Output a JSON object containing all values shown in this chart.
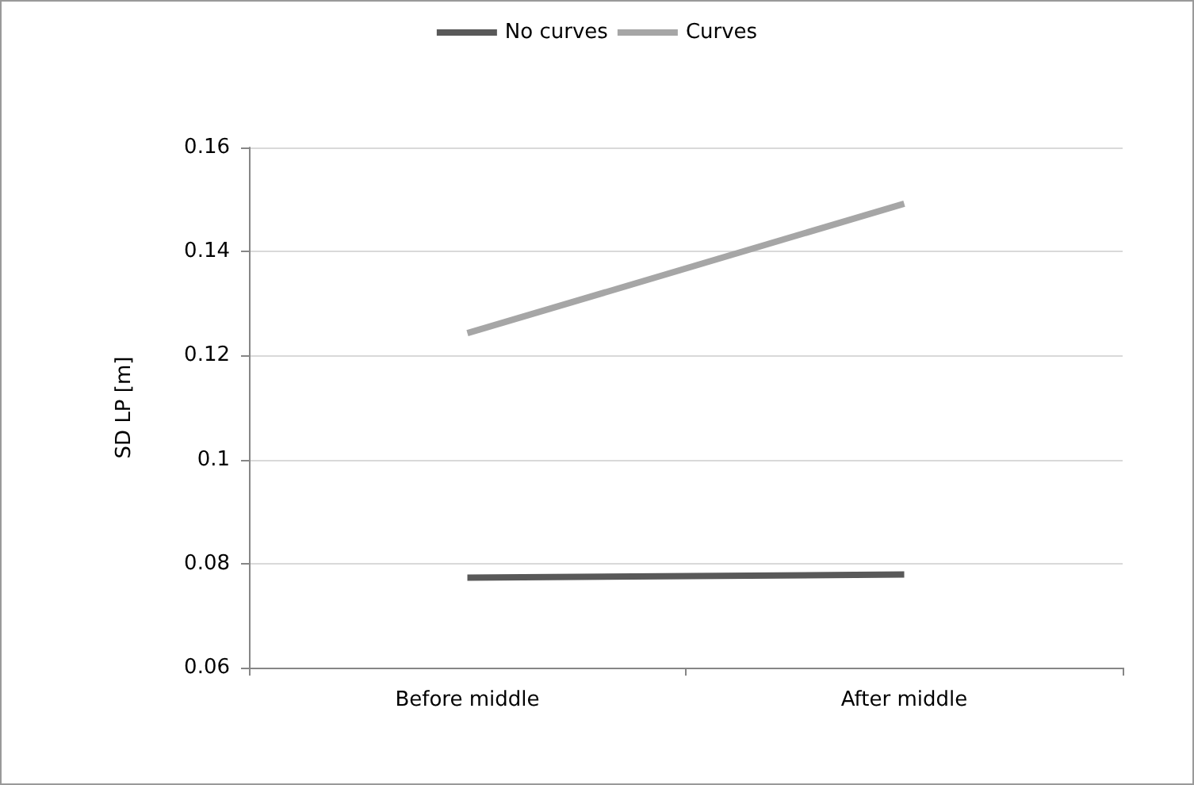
{
  "chart_data": {
    "type": "line",
    "ylabel": "SD LP [m]",
    "categories": [
      "Before middle",
      "After middle"
    ],
    "series": [
      {
        "name": "No curves",
        "color": "#595959",
        "values": [
          0.0773,
          0.0779
        ]
      },
      {
        "name": "Curves",
        "color": "#a6a6a6",
        "values": [
          0.1243,
          0.1492
        ]
      }
    ],
    "ylim": [
      0.06,
      0.16
    ],
    "yticks": [
      0.06,
      0.08,
      0.1,
      0.12,
      0.14,
      0.16
    ],
    "grid": "y",
    "legend": "top",
    "marker": "none",
    "line_style": "solid"
  }
}
